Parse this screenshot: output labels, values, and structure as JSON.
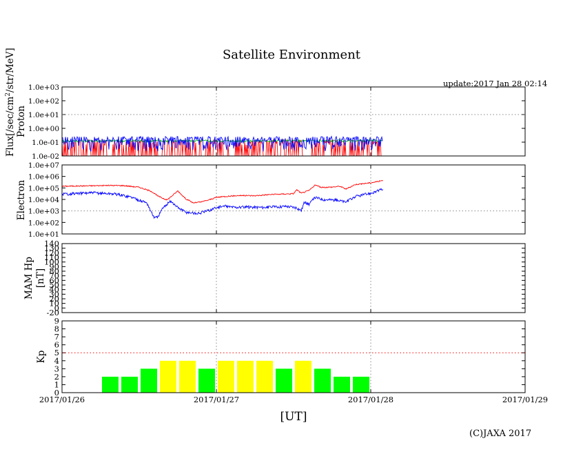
{
  "page": {
    "title": "Satellite Environment",
    "update": "update:2017 Jan 28 02:14",
    "copyright": "(C)JAXA 2017",
    "x_axis_label": "[UT]",
    "flux_label": "Flux[/sec/cm",
    "flux_label_sup": "2",
    "flux_label_tail": "/str/MeV]"
  },
  "chart_data": [
    {
      "type": "line",
      "panel": "proton",
      "ylabel": "Proton",
      "yscale": "log",
      "ylim": [
        0.01,
        1000
      ],
      "yticks": [
        "1.0e-02",
        "1.0e-01",
        "1.0e+00",
        "1.0e+01",
        "1.0e+02",
        "1.0e+03"
      ],
      "x_range_days": [
        0,
        3
      ],
      "series": [
        {
          "name": "proton-red",
          "color": "#ff0000",
          "x_end_days": 2.08,
          "values": [
            0.06,
            0.02
          ]
        },
        {
          "name": "proton-green",
          "color": "#00bb00",
          "x_end_days": 2.08,
          "values": [
            0.1,
            0.14
          ]
        },
        {
          "name": "proton-blue",
          "color": "#0000ff",
          "x_end_days": 2.08,
          "values": [
            0.04,
            0.18
          ]
        }
      ]
    },
    {
      "type": "line",
      "panel": "electron",
      "ylabel": "Electron",
      "yscale": "log",
      "ylim": [
        10,
        10000000
      ],
      "yticks": [
        "1.0e+01",
        "1.0e+02",
        "1.0e+03",
        "1.0e+04",
        "1.0e+05",
        "1.0e+06",
        "1.0e+07"
      ],
      "x_range_days": [
        0,
        3
      ],
      "series": [
        {
          "name": "electron-red",
          "color": "#ff0000",
          "points": [
            [
              0.0,
              140000
            ],
            [
              0.3,
              165000
            ],
            [
              0.4,
              160000
            ],
            [
              0.5,
              115000
            ],
            [
              0.58,
              50000
            ],
            [
              0.62,
              20000
            ],
            [
              0.68,
              9000
            ],
            [
              0.72,
              25000
            ],
            [
              0.75,
              55000
            ],
            [
              0.8,
              12000
            ],
            [
              0.85,
              5000
            ],
            [
              0.9,
              6000
            ],
            [
              0.95,
              9000
            ],
            [
              1.0,
              15000
            ],
            [
              1.05,
              18000
            ],
            [
              1.15,
              22000
            ],
            [
              1.25,
              21000
            ],
            [
              1.35,
              27000
            ],
            [
              1.45,
              30000
            ],
            [
              1.5,
              32000
            ],
            [
              1.52,
              70000
            ],
            [
              1.55,
              35000
            ],
            [
              1.6,
              60000
            ],
            [
              1.64,
              180000
            ],
            [
              1.68,
              110000
            ],
            [
              1.75,
              120000
            ],
            [
              1.8,
              140000
            ],
            [
              1.84,
              80000
            ],
            [
              1.9,
              200000
            ],
            [
              2.0,
              280000
            ],
            [
              2.08,
              450000
            ]
          ]
        },
        {
          "name": "electron-blue",
          "color": "#0000ff",
          "points": [
            [
              0.0,
              30000
            ],
            [
              0.2,
              38000
            ],
            [
              0.35,
              30000
            ],
            [
              0.45,
              16000
            ],
            [
              0.55,
              5000
            ],
            [
              0.58,
              700
            ],
            [
              0.6,
              250
            ],
            [
              0.62,
              300
            ],
            [
              0.65,
              1500
            ],
            [
              0.7,
              8000
            ],
            [
              0.74,
              2500
            ],
            [
              0.8,
              800
            ],
            [
              0.88,
              600
            ],
            [
              0.95,
              1100
            ],
            [
              1.0,
              2000
            ],
            [
              1.05,
              2600
            ],
            [
              1.12,
              2100
            ],
            [
              1.2,
              2200
            ],
            [
              1.3,
              2100
            ],
            [
              1.38,
              2300
            ],
            [
              1.45,
              2600
            ],
            [
              1.52,
              2000
            ],
            [
              1.55,
              1100
            ],
            [
              1.57,
              6000
            ],
            [
              1.6,
              4000
            ],
            [
              1.64,
              15000
            ],
            [
              1.7,
              10000
            ],
            [
              1.78,
              9000
            ],
            [
              1.84,
              6000
            ],
            [
              1.9,
              18000
            ],
            [
              2.0,
              35000
            ],
            [
              2.08,
              80000
            ]
          ]
        }
      ]
    },
    {
      "type": "line",
      "panel": "mam",
      "ylabel": "MAM Hp",
      "ylabel2": "[nT]",
      "ylim": [
        -20,
        140
      ],
      "yticks": [
        "-20",
        "0",
        "10",
        "20",
        "30",
        "40",
        "50",
        "60",
        "70",
        "80",
        "90",
        "100",
        "110",
        "120",
        "130",
        "140"
      ],
      "series": []
    },
    {
      "type": "bar",
      "panel": "kp",
      "ylabel": "Kp",
      "ylim": [
        0,
        9
      ],
      "yticks": [
        "0",
        "1",
        "2",
        "3",
        "4",
        "5",
        "6",
        "7",
        "8",
        "9"
      ],
      "threshold": 5,
      "x_tick_labels": [
        "2017/01/26",
        "2017/01/27",
        "2017/01/28",
        "2017/01/29"
      ],
      "bar_interval_days": 0.125,
      "bars": [
        {
          "start_days": 0.25,
          "value": 2,
          "color": "#00ff00"
        },
        {
          "start_days": 0.375,
          "value": 2,
          "color": "#00ff00"
        },
        {
          "start_days": 0.5,
          "value": 3,
          "color": "#00ff00"
        },
        {
          "start_days": 0.625,
          "value": 4,
          "color": "#ffff00"
        },
        {
          "start_days": 0.75,
          "value": 4,
          "color": "#ffff00"
        },
        {
          "start_days": 0.875,
          "value": 3,
          "color": "#00ff00"
        },
        {
          "start_days": 1.0,
          "value": 4,
          "color": "#ffff00"
        },
        {
          "start_days": 1.125,
          "value": 4,
          "color": "#ffff00"
        },
        {
          "start_days": 1.25,
          "value": 4,
          "color": "#ffff00"
        },
        {
          "start_days": 1.375,
          "value": 3,
          "color": "#00ff00"
        },
        {
          "start_days": 1.5,
          "value": 4,
          "color": "#ffff00"
        },
        {
          "start_days": 1.625,
          "value": 3,
          "color": "#00ff00"
        },
        {
          "start_days": 1.75,
          "value": 2,
          "color": "#00ff00"
        },
        {
          "start_days": 1.875,
          "value": 2,
          "color": "#00ff00"
        }
      ]
    }
  ]
}
